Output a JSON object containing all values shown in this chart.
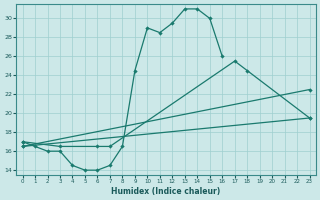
{
  "xlabel": "Humidex (Indice chaleur)",
  "xlim": [
    -0.5,
    23.5
  ],
  "ylim": [
    13.5,
    31.5
  ],
  "xticks": [
    0,
    1,
    2,
    3,
    4,
    5,
    6,
    7,
    8,
    9,
    10,
    11,
    12,
    13,
    14,
    15,
    16,
    17,
    18,
    19,
    20,
    21,
    22,
    23
  ],
  "yticks": [
    14,
    16,
    18,
    20,
    22,
    24,
    26,
    28,
    30
  ],
  "bg_color": "#cce8e8",
  "line_color": "#1a7a6e",
  "grid_color": "#9fcfcf",
  "line1_x": [
    0,
    1,
    2,
    3,
    4,
    5,
    6,
    7,
    8,
    9,
    10,
    11,
    12,
    13,
    14,
    15,
    16
  ],
  "line1_y": [
    17.0,
    16.5,
    16.0,
    16.0,
    14.5,
    14.0,
    14.0,
    14.5,
    16.5,
    24.5,
    29.0,
    28.5,
    29.5,
    31.0,
    31.0,
    30.0,
    26.0
  ],
  "line2_x": [
    0,
    3,
    6,
    7,
    17,
    18,
    23
  ],
  "line2_y": [
    17.0,
    16.5,
    16.5,
    16.5,
    25.5,
    24.5,
    19.5
  ],
  "line3_x": [
    0,
    23
  ],
  "line3_y": [
    16.5,
    22.5
  ],
  "line4_x": [
    0,
    23
  ],
  "line4_y": [
    16.5,
    19.5
  ]
}
